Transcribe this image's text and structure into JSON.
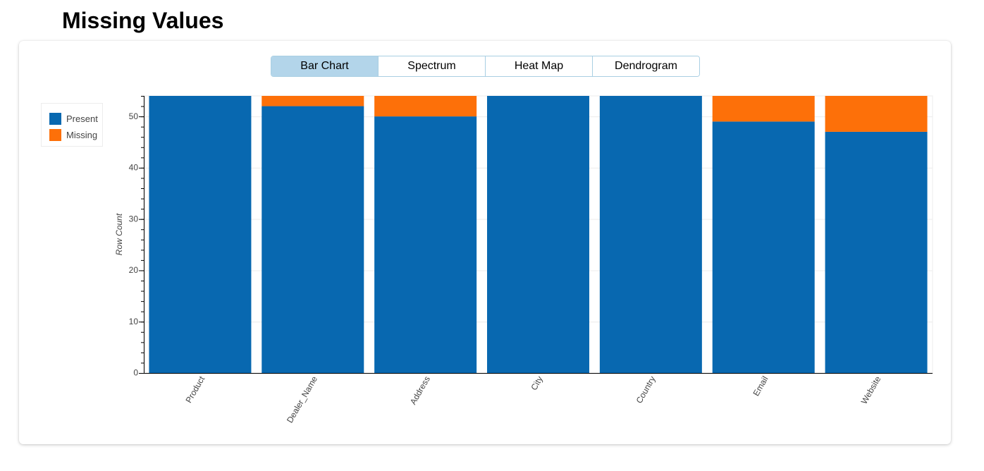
{
  "page": {
    "title": "Missing Values"
  },
  "tabs": [
    {
      "label": "Bar Chart",
      "active": true
    },
    {
      "label": "Spectrum",
      "active": false
    },
    {
      "label": "Heat Map",
      "active": false
    },
    {
      "label": "Dendrogram",
      "active": false
    }
  ],
  "legend": {
    "items": [
      {
        "label": "Present",
        "color": "#0868b0"
      },
      {
        "label": "Missing",
        "color": "#fd7009"
      }
    ]
  },
  "chart_data": {
    "type": "bar",
    "stacked": true,
    "categories": [
      "Product",
      "Dealer_Name",
      "Address",
      "City",
      "Country",
      "Email",
      "Website"
    ],
    "series": [
      {
        "name": "Present",
        "color": "#0868b0",
        "values": [
          54,
          52,
          50,
          54,
          54,
          49,
          47
        ]
      },
      {
        "name": "Missing",
        "color": "#fd7009",
        "values": [
          0,
          2,
          4,
          0,
          0,
          5,
          7
        ]
      }
    ],
    "ylabel": "Row Count",
    "xlabel": "",
    "ylim": [
      0,
      54
    ],
    "yticks": [
      0,
      10,
      20,
      30,
      40,
      50
    ],
    "grid": true,
    "legend_position": "top-left"
  }
}
